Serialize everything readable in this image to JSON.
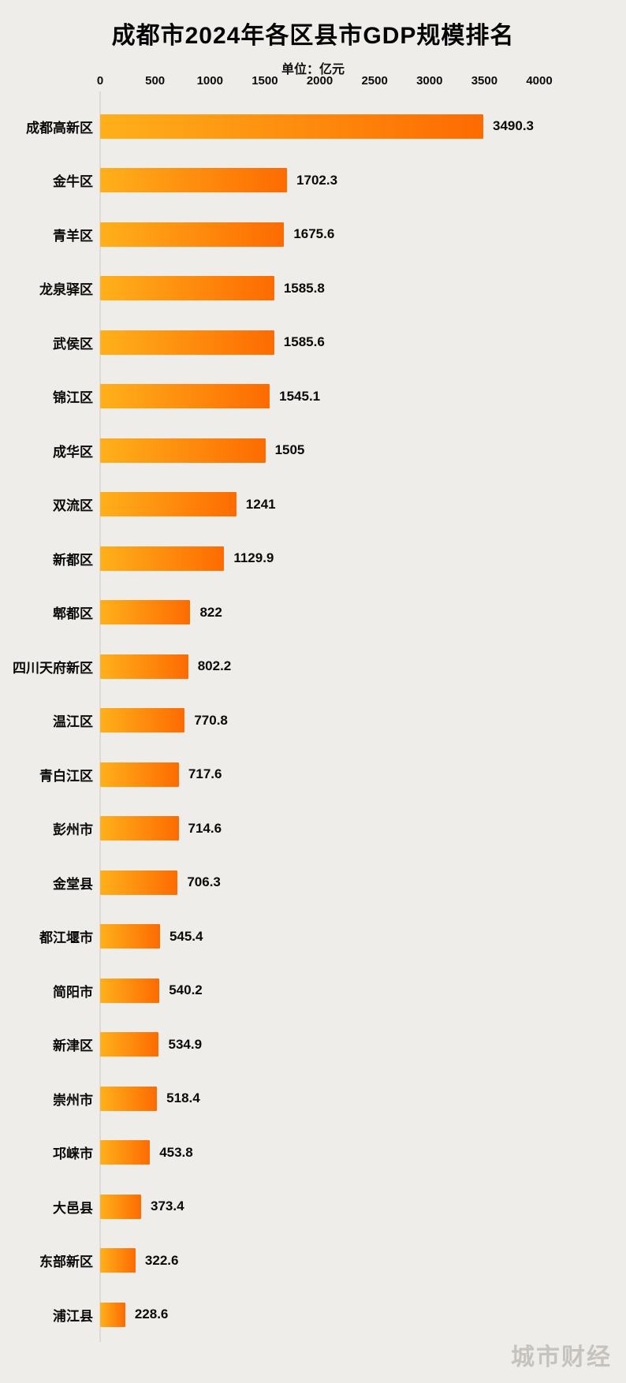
{
  "page": {
    "title": "成都市2024年各区县市GDP规模排名",
    "subtitle": "单位：亿元",
    "watermark": "城市财经",
    "background": "#efedea"
  },
  "chart_data": {
    "type": "bar",
    "orientation": "horizontal",
    "title": "成都市2024年各区县市GDP规模排名",
    "unit": "亿元",
    "xlim": [
      0,
      4000
    ],
    "x_ticks": [
      0,
      500,
      1000,
      1500,
      2000,
      2500,
      3000,
      3500,
      4000
    ],
    "grid": false,
    "legend": false,
    "bar_gradient": [
      "#ffb01b",
      "#fd6b01"
    ],
    "value_label_color": "#0a0a0a",
    "categories": [
      "成都高新区",
      "金牛区",
      "青羊区",
      "龙泉驿区",
      "武侯区",
      "锦江区",
      "成华区",
      "双流区",
      "新都区",
      "郫都区",
      "四川天府新区",
      "温江区",
      "青白江区",
      "彭州市",
      "金堂县",
      "都江堰市",
      "简阳市",
      "新津区",
      "崇州市",
      "邛崃市",
      "大邑县",
      "东部新区",
      "浦江县"
    ],
    "values": [
      3490.3,
      1702.3,
      1675.6,
      1585.8,
      1585.6,
      1545.1,
      1505,
      1241,
      1129.9,
      822,
      802.2,
      770.8,
      717.6,
      714.6,
      706.3,
      545.4,
      540.2,
      534.9,
      518.4,
      453.8,
      373.4,
      322.6,
      228.6
    ]
  }
}
